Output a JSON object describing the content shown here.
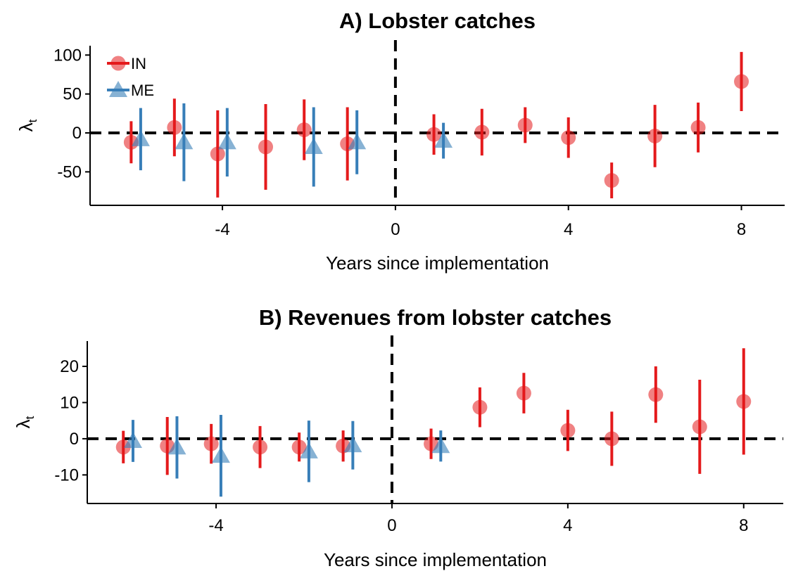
{
  "chart_data": [
    {
      "type": "errorbar",
      "title": "A) Lobster catches",
      "xlabel": "Years since implementation",
      "ylabel": {
        "text": "λ",
        "subscript": "t"
      },
      "xlim": [
        -7.06,
        9
      ],
      "ylim": [
        -93,
        112
      ],
      "xticks": [
        -4,
        0,
        4,
        8
      ],
      "yticks": [
        -50,
        0,
        50,
        100
      ],
      "reference_lines": {
        "x": 0,
        "y": 0
      },
      "legend": "top-left",
      "series": [
        {
          "name": "IN",
          "color": "#e41a1c",
          "marker": "circle",
          "x": [
            -6,
            -5,
            -4,
            -3,
            -2,
            -1,
            1,
            2,
            3,
            4,
            5,
            6,
            7,
            8
          ],
          "values": [
            -12,
            7,
            -27,
            -18,
            4,
            -14,
            -2,
            1,
            10,
            -6,
            -61,
            -4,
            7,
            66
          ],
          "errors": [
            27,
            37,
            56,
            55,
            39,
            47,
            26,
            30,
            23,
            26,
            23,
            40,
            32,
            38
          ]
        },
        {
          "name": "ME",
          "color": "#377eb8",
          "marker": "triangle",
          "x": [
            -6,
            -5,
            -4,
            -2,
            -1,
            1
          ],
          "values": [
            -8,
            -12,
            -12,
            -18,
            -12,
            -10
          ],
          "errors": [
            40,
            50,
            44,
            51,
            41,
            23
          ]
        }
      ]
    },
    {
      "type": "errorbar",
      "title": "B) Revenues from lobster catches",
      "xlabel": "Years since implementation",
      "ylabel": {
        "text": "λ",
        "subscript": "t"
      },
      "xlim": [
        -6.93,
        8.9
      ],
      "ylim": [
        -17.9,
        27
      ],
      "xticks": [
        -4,
        0,
        4,
        8
      ],
      "yticks": [
        -10,
        0,
        10,
        20
      ],
      "reference_lines": {
        "x": 0,
        "y": 0
      },
      "legend": "none",
      "series": [
        {
          "name": "IN",
          "color": "#e41a1c",
          "marker": "circle",
          "x": [
            -6,
            -5,
            -4,
            -3,
            -2,
            -1,
            1,
            2,
            3,
            4,
            5,
            6,
            7,
            8
          ],
          "values": [
            -2.3,
            -2,
            -1.4,
            -2.3,
            -2.3,
            -2,
            -1.4,
            8.7,
            12.6,
            2.3,
            0,
            12.2,
            3.3,
            10.3
          ],
          "errors": [
            4.5,
            8,
            5.5,
            5.8,
            4,
            4.3,
            4.2,
            5.5,
            5.6,
            5.7,
            7.5,
            7.8,
            13,
            14.7
          ]
        },
        {
          "name": "ME",
          "color": "#377eb8",
          "marker": "triangle",
          "x": [
            -6,
            -5,
            -4,
            -2,
            -1,
            1
          ],
          "values": [
            -0.6,
            -2.4,
            -4.7,
            -3.5,
            -1.8,
            -2
          ],
          "errors": [
            5.8,
            8.6,
            11.3,
            8.5,
            6.7,
            4.3
          ]
        }
      ]
    }
  ]
}
